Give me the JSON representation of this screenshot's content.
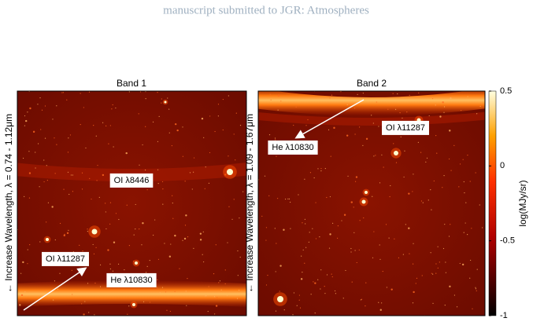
{
  "header": "manuscript submitted to JGR: Atmospheres",
  "panels": [
    {
      "title": "Band 1",
      "ylabel": "← Increase Wavelength, λ = 0.74 - 1.12μm",
      "annotations": [
        "OI λ8446",
        "OI λ11287",
        "He λ10830"
      ]
    },
    {
      "title": "Band 2",
      "ylabel": "← Increase Wavelength, λ = 1.09 - 1.67μm",
      "annotations": [
        "OI λ11287",
        "He λ10830"
      ]
    }
  ],
  "colorbar": {
    "label": "log(MJy/sr)",
    "lim": [
      -1,
      0.5
    ],
    "ticks": [
      0.5,
      0,
      -0.5,
      -1
    ]
  }
}
